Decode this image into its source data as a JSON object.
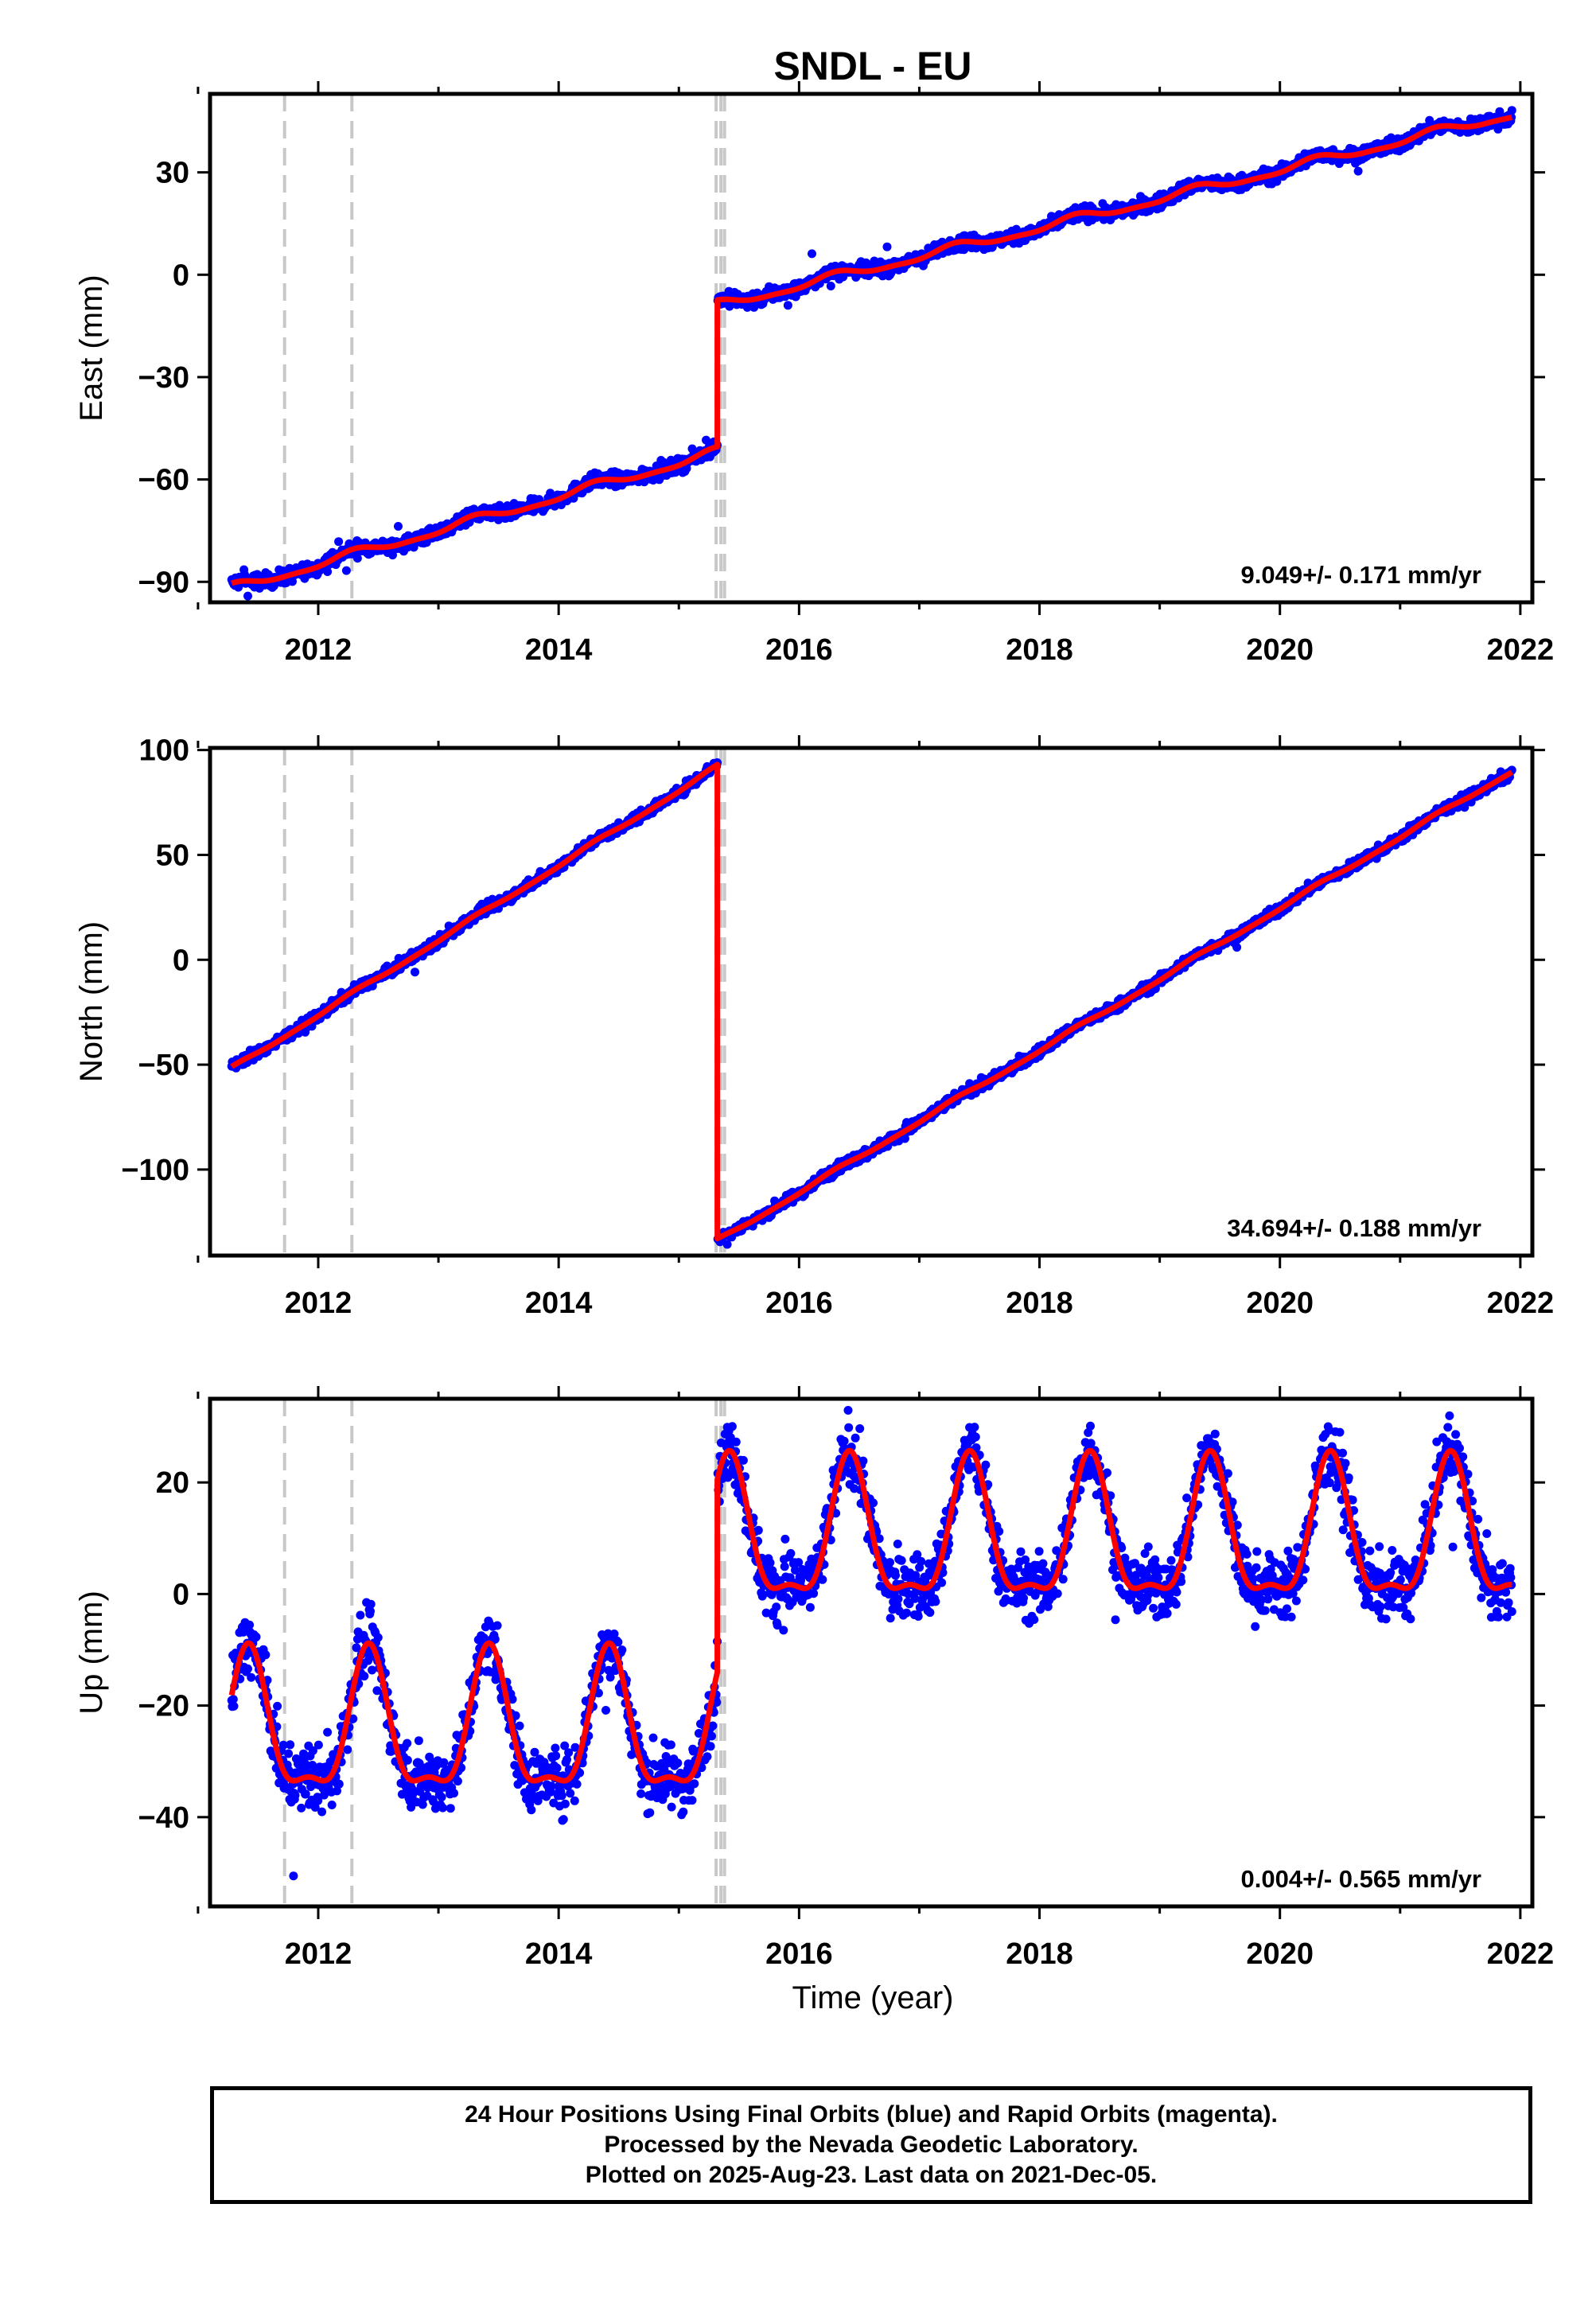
{
  "chart_data": {
    "type": "scatter",
    "title": "SNDL - EU",
    "xlabel": "Time (year)",
    "xlim": [
      2011.1,
      2022.1
    ],
    "x_ticks": [
      2012,
      2014,
      2016,
      2018,
      2020,
      2022
    ],
    "x_tick_labels": [
      "2012",
      "2014",
      "2016",
      "2018",
      "2020",
      "2022"
    ],
    "data_span": [
      2011.28,
      2021.93
    ],
    "event_lines_x": [
      2011.72,
      2012.28,
      2015.31,
      2015.35,
      2015.38
    ],
    "colors": {
      "points": "#0000ff",
      "fit": "#ff0000",
      "event_lines": "#c8c8c8"
    },
    "panels": [
      {
        "name": "east",
        "ylabel": "East (mm)",
        "ylim": [
          -96,
          53
        ],
        "y_ticks": [
          30,
          0,
          -30,
          -60,
          -90
        ],
        "y_tick_labels": [
          "30",
          "0",
          "−30",
          "−60",
          "−90"
        ],
        "rate_text": "9.049+/- 0.171 mm/yr",
        "offset_at": 2015.32,
        "start_value": -92,
        "value_before_offset": -52,
        "value_after_offset": -9,
        "end_value": 47,
        "seasonal_amplitude": 1.2,
        "scatter": 1.5
      },
      {
        "name": "north",
        "ylabel": "North (mm)",
        "ylim": [
          -141,
          101
        ],
        "y_ticks": [
          100,
          50,
          0,
          -50,
          -100
        ],
        "y_tick_labels": [
          "100",
          "50",
          "0",
          "−50",
          "−100"
        ],
        "rate_text": "34.694+/- 0.188 mm/yr",
        "offset_at": 2015.32,
        "start_value": -52,
        "value_before_offset": 92,
        "value_after_offset": -134,
        "end_value": 90,
        "seasonal_amplitude": 0.8,
        "scatter": 1.8
      },
      {
        "name": "up",
        "ylabel": "Up (mm)",
        "ylim": [
          -56,
          35
        ],
        "y_ticks": [
          20,
          0,
          -20,
          -40
        ],
        "y_tick_labels": [
          "20",
          "0",
          "−20",
          "−40"
        ],
        "rate_text": "0.004+/- 0.565 mm/yr",
        "offset_at": 2015.32,
        "start_value": -25,
        "value_before_offset": -25,
        "value_after_offset": 9.5,
        "end_value": 9.5,
        "seasonal_amplitude": 12,
        "seasonal_peak": 0.42,
        "scatter": 4
      }
    ]
  },
  "footer": {
    "line1": "24 Hour Positions Using Final Orbits (blue) and Rapid Orbits (magenta).",
    "line2": "Processed by the Nevada Geodetic Laboratory.",
    "line3": "Plotted on 2025-Aug-23. Last data on 2021-Dec-05."
  }
}
